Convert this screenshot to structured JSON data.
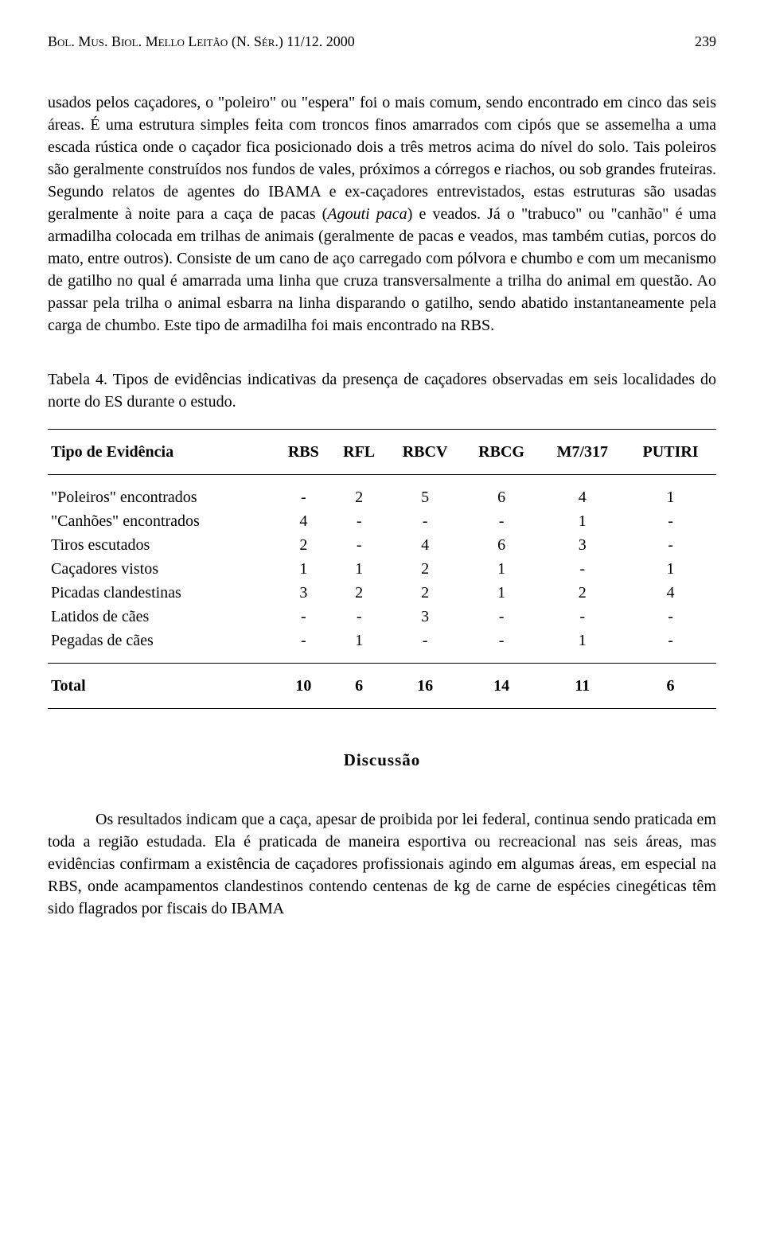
{
  "header": {
    "journal": "Bol. Mus. Biol. Mello Leitão (N. Sér.) 11/12. 2000",
    "page_number": "239"
  },
  "body_paragraph": "usados pelos caçadores, o \"poleiro\" ou \"espera\" foi o mais comum, sendo encontrado em cinco das seis áreas. É uma estrutura simples feita com troncos finos amarrados com cipós que se assemelha a uma escada rústica onde o caçador fica posicionado dois a três metros acima do nível do solo. Tais poleiros são geralmente construídos nos fundos de vales, próximos a córregos e riachos, ou sob grandes fruteiras. Segundo relatos de agentes do IBAMA e ex-caçadores entrevistados, estas estruturas são usadas geralmente à noite para a caça de pacas (",
  "body_italic": "Agouti paca",
  "body_paragraph_2": ") e veados. Já o \"trabuco\" ou \"canhão\" é uma armadilha colocada em trilhas de animais (geralmente de pacas e veados, mas também cutias, porcos do mato, entre outros). Consiste de um cano de aço carregado com pólvora e chumbo e com um mecanismo de gatilho no qual é amarrada uma linha que cruza transversalmente a trilha do animal em questão. Ao passar pela trilha o animal esbarra na linha disparando o gatilho, sendo abatido instantaneamente pela carga de chumbo. Este tipo de armadilha foi mais encontrado na RBS.",
  "table": {
    "caption": "Tabela 4. Tipos de evidências indicativas da presença de caçadores observadas em seis localidades do norte do ES durante o estudo.",
    "columns": [
      "Tipo de Evidência",
      "RBS",
      "RFL",
      "RBCV",
      "RBCG",
      "M7/317",
      "PUTIRI"
    ],
    "rows": [
      [
        "\"Poleiros\" encontrados",
        "-",
        "2",
        "5",
        "6",
        "4",
        "1"
      ],
      [
        "\"Canhões\" encontrados",
        "4",
        "-",
        "-",
        "-",
        "1",
        "-"
      ],
      [
        "Tiros escutados",
        "2",
        "-",
        "4",
        "6",
        "3",
        "-"
      ],
      [
        "Caçadores vistos",
        "1",
        "1",
        "2",
        "1",
        "-",
        "1"
      ],
      [
        "Picadas clandestinas",
        "3",
        "2",
        "2",
        "1",
        "2",
        "4"
      ],
      [
        "Latidos de cães",
        "-",
        "-",
        "3",
        "-",
        "-",
        "-"
      ],
      [
        "Pegadas de cães",
        "-",
        "1",
        "-",
        "-",
        "1",
        "-"
      ]
    ],
    "totals": [
      "Total",
      "10",
      "6",
      "16",
      "14",
      "11",
      "6"
    ]
  },
  "section": {
    "heading": "Discussão",
    "paragraph": "Os resultados indicam que a caça, apesar de proibida por lei federal, continua sendo praticada em toda a região estudada. Ela é praticada de maneira esportiva ou recreacional nas seis áreas, mas evidências confirmam a existência de caçadores profissionais agindo em algumas áreas, em especial na RBS, onde acampamentos clandestinos contendo centenas de kg de carne de espécies cinegéticas têm sido flagrados por fiscais do IBAMA"
  }
}
